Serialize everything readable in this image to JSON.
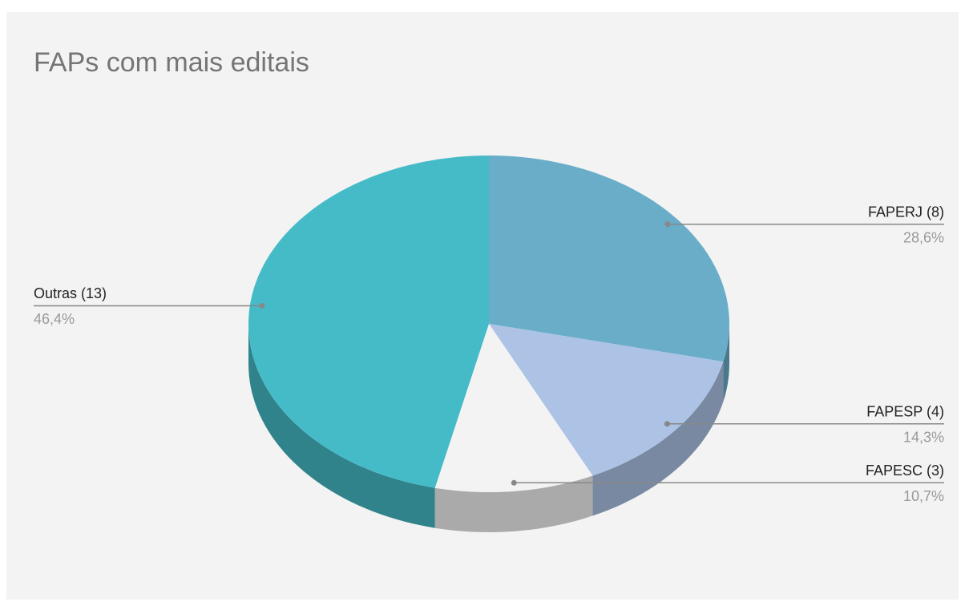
{
  "chart_data": {
    "type": "pie",
    "title": "FAPs com mais editais",
    "categories": [
      "FAPERJ (8)",
      "FAPESP (4)",
      "FAPESC (3)",
      "Outras (13)"
    ],
    "values": [
      28.6,
      14.3,
      10.7,
      46.4
    ],
    "value_labels": [
      "28,6%",
      "14,3%",
      "10,7%",
      "46,4%"
    ],
    "colors": [
      "#69adc9",
      "#adc3e6",
      "#f3f3f3",
      "#45bbc7"
    ],
    "three_d": true
  }
}
